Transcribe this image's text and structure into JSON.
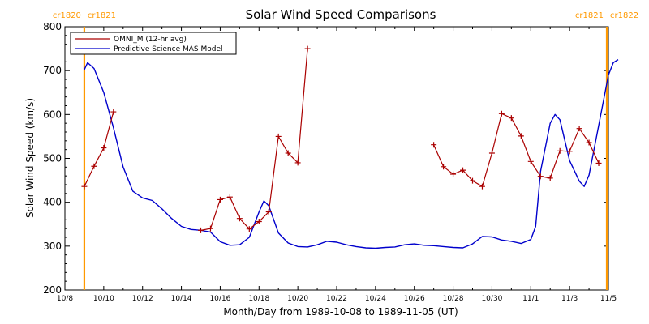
{
  "chart_data": {
    "type": "line",
    "title": "Solar Wind Speed Comparisons",
    "xlabel": "Month/Day from 1989-10-08 to 1989-11-05 (UT)",
    "ylabel": "Solar Wind Speed (km/s)",
    "xlim": [
      "1989-10-08",
      "1989-11-05"
    ],
    "ylim": [
      200,
      800
    ],
    "grid": false,
    "legend_position": "top-left",
    "x_tick_labels": [
      "10/8",
      "10/10",
      "10/12",
      "10/14",
      "10/16",
      "10/18",
      "10/20",
      "10/22",
      "10/24",
      "10/26",
      "10/28",
      "10/30",
      "11/1",
      "11/3",
      "11/5"
    ],
    "y_tick_labels": [
      "200",
      "300",
      "400",
      "500",
      "600",
      "700",
      "800"
    ],
    "carrington_markers": [
      {
        "date": "1989-10-09T00:00",
        "label_left": "cr1820",
        "label_right": "cr1821"
      },
      {
        "date": "1989-11-04T22:00",
        "label_left": "cr1821",
        "label_right": "cr1822"
      }
    ],
    "series": [
      {
        "name": "OMNI_M (12-hr avg)",
        "color": "#aa0000",
        "marker": "+",
        "segments": [
          [
            [
              "1989-10-09T00:00",
              436
            ],
            [
              "1989-10-09T12:00",
              482
            ],
            [
              "1989-10-10T00:00",
              524
            ],
            [
              "1989-10-10T12:00",
              606
            ]
          ],
          [
            [
              "1989-10-15T00:00",
              336
            ],
            [
              "1989-10-15T12:00",
              340
            ],
            [
              "1989-10-16T00:00",
              406
            ],
            [
              "1989-10-16T12:00",
              412
            ],
            [
              "1989-10-17T00:00",
              363
            ],
            [
              "1989-10-17T12:00",
              339
            ],
            [
              "1989-10-18T00:00",
              356
            ],
            [
              "1989-10-18T12:00",
              378
            ],
            [
              "1989-10-19T00:00",
              550
            ],
            [
              "1989-10-19T12:00",
              512
            ],
            [
              "1989-10-20T00:00",
              490
            ],
            [
              "1989-10-20T12:00",
              750
            ]
          ],
          [
            [
              "1989-10-27T00:00",
              531
            ],
            [
              "1989-10-27T12:00",
              481
            ],
            [
              "1989-10-28T00:00",
              464
            ],
            [
              "1989-10-28T12:00",
              473
            ],
            [
              "1989-10-29T00:00",
              449
            ],
            [
              "1989-10-29T12:00",
              436
            ],
            [
              "1989-10-30T00:00",
              512
            ],
            [
              "1989-10-30T12:00",
              602
            ],
            [
              "1989-10-31T00:00",
              592
            ],
            [
              "1989-10-31T12:00",
              551
            ],
            [
              "1989-11-01T00:00",
              493
            ],
            [
              "1989-11-01T12:00",
              459
            ],
            [
              "1989-11-02T00:00",
              455
            ],
            [
              "1989-11-02T12:00",
              517
            ],
            [
              "1989-11-03T00:00",
              516
            ],
            [
              "1989-11-03T12:00",
              568
            ],
            [
              "1989-11-04T00:00",
              536
            ],
            [
              "1989-11-04T12:00",
              489
            ]
          ]
        ]
      },
      {
        "name": "Predictive Science MAS Model",
        "color": "#0000cc",
        "marker": "none",
        "points": [
          [
            "1989-10-09T00:00",
            702
          ],
          [
            "1989-10-09T04:00",
            718
          ],
          [
            "1989-10-09T12:00",
            705
          ],
          [
            "1989-10-10T00:00",
            650
          ],
          [
            "1989-10-10T12:00",
            570
          ],
          [
            "1989-10-11T00:00",
            480
          ],
          [
            "1989-10-11T12:00",
            425
          ],
          [
            "1989-10-12T00:00",
            410
          ],
          [
            "1989-10-12T12:00",
            404
          ],
          [
            "1989-10-13T00:00",
            385
          ],
          [
            "1989-10-13T12:00",
            363
          ],
          [
            "1989-10-14T00:00",
            345
          ],
          [
            "1989-10-14T12:00",
            338
          ],
          [
            "1989-10-15T00:00",
            336
          ],
          [
            "1989-10-15T12:00",
            332
          ],
          [
            "1989-10-16T00:00",
            310
          ],
          [
            "1989-10-16T12:00",
            302
          ],
          [
            "1989-10-17T00:00",
            303
          ],
          [
            "1989-10-17T12:00",
            320
          ],
          [
            "1989-10-18T00:00",
            378
          ],
          [
            "1989-10-18T06:00",
            403
          ],
          [
            "1989-10-18T12:00",
            392
          ],
          [
            "1989-10-19T00:00",
            330
          ],
          [
            "1989-10-19T12:00",
            307
          ],
          [
            "1989-10-20T00:00",
            299
          ],
          [
            "1989-10-20T12:00",
            298
          ],
          [
            "1989-10-21T00:00",
            303
          ],
          [
            "1989-10-21T12:00",
            311
          ],
          [
            "1989-10-22T00:00",
            309
          ],
          [
            "1989-10-22T12:00",
            303
          ],
          [
            "1989-10-23T00:00",
            299
          ],
          [
            "1989-10-23T12:00",
            296
          ],
          [
            "1989-10-24T00:00",
            295
          ],
          [
            "1989-10-24T12:00",
            297
          ],
          [
            "1989-10-25T00:00",
            298
          ],
          [
            "1989-10-25T12:00",
            303
          ],
          [
            "1989-10-26T00:00",
            305
          ],
          [
            "1989-10-26T12:00",
            302
          ],
          [
            "1989-10-27T00:00",
            301
          ],
          [
            "1989-10-27T12:00",
            299
          ],
          [
            "1989-10-28T00:00",
            297
          ],
          [
            "1989-10-28T12:00",
            296
          ],
          [
            "1989-10-29T00:00",
            305
          ],
          [
            "1989-10-29T12:00",
            322
          ],
          [
            "1989-10-30T00:00",
            321
          ],
          [
            "1989-10-30T12:00",
            314
          ],
          [
            "1989-10-31T00:00",
            311
          ],
          [
            "1989-10-31T12:00",
            306
          ],
          [
            "1989-11-01T00:00",
            315
          ],
          [
            "1989-11-01T06:00",
            345
          ],
          [
            "1989-11-01T12:00",
            470
          ],
          [
            "1989-11-02T00:00",
            580
          ],
          [
            "1989-11-02T06:00",
            600
          ],
          [
            "1989-11-02T12:00",
            588
          ],
          [
            "1989-11-03T00:00",
            495
          ],
          [
            "1989-11-03T12:00",
            448
          ],
          [
            "1989-11-03T18:00",
            436
          ],
          [
            "1989-11-04T00:00",
            462
          ],
          [
            "1989-11-04T12:00",
            575
          ],
          [
            "1989-11-05T00:00",
            690
          ],
          [
            "1989-11-05T06:00",
            718
          ],
          [
            "1989-11-05T12:00",
            725
          ]
        ]
      }
    ]
  }
}
